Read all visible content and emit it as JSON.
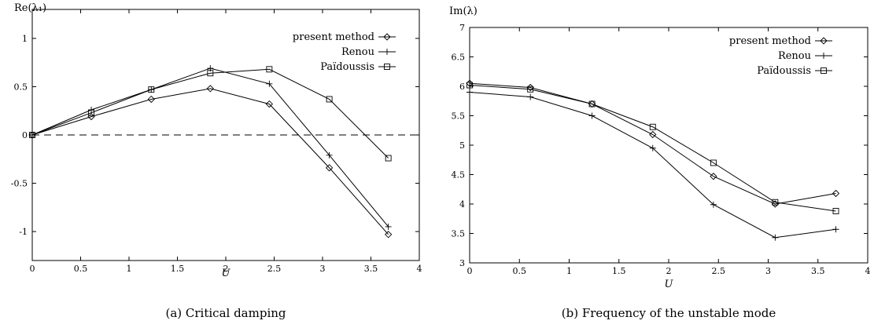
{
  "chart_data": [
    {
      "type": "line",
      "caption": "(a)  Critical damping",
      "xlabel": "U",
      "ylabel": "Re(λ₁)",
      "xlim": [
        0,
        4
      ],
      "ylim": [
        -1.3,
        1.3
      ],
      "xticks": [
        0,
        0.5,
        1,
        1.5,
        2,
        2.5,
        3,
        3.5,
        4
      ],
      "yticks": [
        -1,
        -0.5,
        0,
        0.5,
        1
      ],
      "reference_line": {
        "y": 0,
        "style": "dashed"
      },
      "legend_position": "top-right",
      "grid": false,
      "series": [
        {
          "name": "present method",
          "marker": "diamond",
          "x": [
            0,
            0.61,
            1.23,
            1.84,
            2.45,
            3.07,
            3.68
          ],
          "y": [
            0.0,
            0.19,
            0.37,
            0.48,
            0.32,
            -0.34,
            -1.03
          ]
        },
        {
          "name": "Renou",
          "marker": "plus",
          "x": [
            0,
            0.61,
            1.23,
            1.84,
            2.45,
            3.07,
            3.68
          ],
          "y": [
            0.0,
            0.26,
            0.47,
            0.69,
            0.53,
            -0.21,
            -0.95
          ]
        },
        {
          "name": "Païdoussis",
          "marker": "square",
          "x": [
            0,
            0.61,
            1.23,
            1.84,
            2.45,
            3.07,
            3.68
          ],
          "y": [
            0.0,
            0.23,
            0.47,
            0.64,
            0.68,
            0.37,
            -0.24
          ]
        }
      ]
    },
    {
      "type": "line",
      "caption": "(b)  Frequency of the unstable mode",
      "xlabel": "U",
      "ylabel": "Im(λ)",
      "xlim": [
        0,
        4
      ],
      "ylim": [
        3,
        7
      ],
      "xticks": [
        0,
        0.5,
        1,
        1.5,
        2,
        2.5,
        3,
        3.5,
        4
      ],
      "yticks": [
        3,
        3.5,
        4,
        4.5,
        5,
        5.5,
        6,
        6.5,
        7
      ],
      "legend_position": "top-right",
      "grid": false,
      "series": [
        {
          "name": "present method",
          "marker": "diamond",
          "x": [
            0,
            0.61,
            1.23,
            1.84,
            2.45,
            3.07,
            3.68
          ],
          "y": [
            6.05,
            5.98,
            5.7,
            5.18,
            4.47,
            4.0,
            4.18
          ]
        },
        {
          "name": "Renou",
          "marker": "plus",
          "x": [
            0,
            0.61,
            1.23,
            1.84,
            2.45,
            3.07,
            3.68
          ],
          "y": [
            5.9,
            5.82,
            5.5,
            4.95,
            3.99,
            3.43,
            3.57
          ]
        },
        {
          "name": "Païdoussis",
          "marker": "square",
          "x": [
            0,
            0.61,
            1.23,
            1.84,
            2.45,
            3.07,
            3.68
          ],
          "y": [
            6.02,
            5.95,
            5.7,
            5.31,
            4.7,
            4.03,
            3.88
          ]
        }
      ]
    }
  ]
}
